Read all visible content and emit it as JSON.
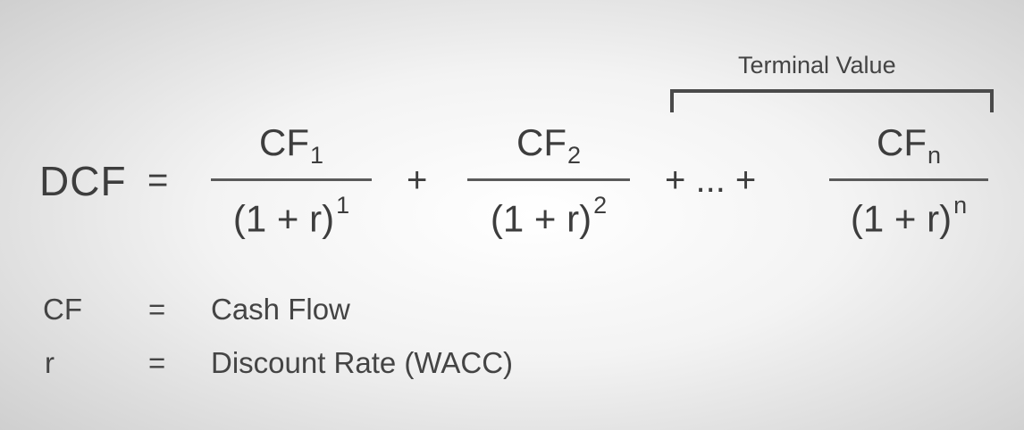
{
  "formula": {
    "lhs": "DCF",
    "equals": "=",
    "terms": [
      {
        "numerator": "CF",
        "num_sub": "1",
        "denominator": "(1 + r)",
        "den_sup": "1"
      },
      {
        "numerator": "CF",
        "num_sub": "2",
        "denominator": "(1 + r)",
        "den_sup": "2"
      },
      {
        "numerator": "CF",
        "num_sub": "n",
        "denominator": "(1 + r)",
        "den_sup": "n"
      }
    ],
    "plus": "+",
    "ellipsis_connector": "+ ... +",
    "bracket_label": "Terminal Value"
  },
  "legend": [
    {
      "symbol": "CF",
      "equals": "=",
      "definition": "Cash Flow"
    },
    {
      "symbol": "r",
      "equals": "=",
      "definition": "Discount Rate (WACC)"
    }
  ]
}
